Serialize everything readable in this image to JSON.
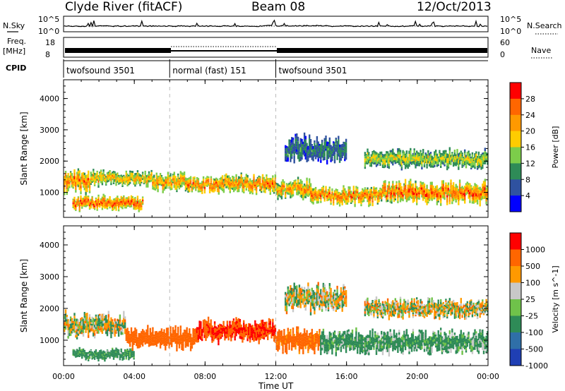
{
  "header": {
    "station": "Clyde River (fitACF)",
    "beam": "Beam 08",
    "date": "12/Oct/2013"
  },
  "strip_labels": {
    "nsky": "N.Sky",
    "nsky_ticks": [
      "10^5",
      "10^0"
    ],
    "nsearch": "N.Search",
    "nsearch_ticks": [
      "10^5",
      "10^0"
    ],
    "freq": "Freq.",
    "freq_unit": "[MHz]",
    "freq_ticks": [
      "18",
      "8"
    ],
    "nave": "Nave",
    "nave_ticks": [
      "60",
      "0"
    ],
    "cpid": "CPID"
  },
  "cpid_segments": [
    {
      "label": "twofsound 3501",
      "start_h": 0,
      "end_h": 6
    },
    {
      "label": "normal (fast) 151",
      "start_h": 6,
      "end_h": 12
    },
    {
      "label": "twofsound 3501",
      "start_h": 12,
      "end_h": 24
    }
  ],
  "colors": {
    "power_scale": [
      "#0000ff",
      "#2f52a0",
      "#2e8b57",
      "#7ccd4a",
      "#ffcc00",
      "#ff9900",
      "#ff6600",
      "#ff0000"
    ],
    "velocity_scale": [
      "#1f3fb4",
      "#2f6fa8",
      "#2e8b57",
      "#6fc24a",
      "#c8c8c8",
      "#ff9900",
      "#ff6600",
      "#ff0000"
    ]
  },
  "chart_data": [
    {
      "type": "heatmap",
      "title": "Power",
      "xlabel": "",
      "ylabel": "Slant Range [km]",
      "x_ticks": [
        "00:00",
        "04:00",
        "08:00",
        "12:00",
        "16:00",
        "20:00",
        "00:00"
      ],
      "y_ticks": [
        1000,
        2000,
        3000,
        4000
      ],
      "xlim_h": [
        0,
        24
      ],
      "ylim_km": [
        200,
        4600
      ],
      "colorbar": {
        "label": "Power [dB]",
        "ticks": [
          "28",
          "24",
          "20",
          "16",
          "12",
          "8",
          "4"
        ],
        "range": [
          0,
          30
        ]
      },
      "bands": [
        {
          "t0": 0.0,
          "t1": 1.5,
          "c_km": 1350,
          "w_km": 600,
          "level": 26
        },
        {
          "t0": 0.5,
          "t1": 4.5,
          "c_km": 650,
          "w_km": 400,
          "level": 29
        },
        {
          "t0": 1.5,
          "t1": 5.0,
          "c_km": 1450,
          "w_km": 400,
          "level": 22
        },
        {
          "t0": 5.0,
          "t1": 7.0,
          "c_km": 1350,
          "w_km": 500,
          "level": 24
        },
        {
          "t0": 7.0,
          "t1": 8.8,
          "c_km": 1250,
          "w_km": 450,
          "level": 27
        },
        {
          "t0": 8.8,
          "t1": 10.5,
          "c_km": 1300,
          "w_km": 500,
          "level": 25
        },
        {
          "t0": 10.5,
          "t1": 12.0,
          "c_km": 1250,
          "w_km": 500,
          "level": 27
        },
        {
          "t0": 12.0,
          "t1": 14.0,
          "c_km": 1100,
          "w_km": 550,
          "level": 24
        },
        {
          "t0": 14.0,
          "t1": 18.0,
          "c_km": 900,
          "w_km": 500,
          "level": 27
        },
        {
          "t0": 18.0,
          "t1": 24.0,
          "c_km": 1000,
          "w_km": 600,
          "level": 28
        },
        {
          "t0": 12.5,
          "t1": 16.0,
          "c_km": 2400,
          "w_km": 700,
          "level": 10
        },
        {
          "t0": 17.0,
          "t1": 24.0,
          "c_km": 2050,
          "w_km": 500,
          "level": 18
        }
      ]
    },
    {
      "type": "heatmap",
      "title": "Velocity",
      "xlabel": "Time UT",
      "ylabel": "Slant Range [km]",
      "x_ticks": [
        "00:00",
        "04:00",
        "08:00",
        "12:00",
        "16:00",
        "20:00",
        "00:00"
      ],
      "y_ticks": [
        1000,
        2000,
        3000,
        4000
      ],
      "xlim_h": [
        0,
        24
      ],
      "ylim_km": [
        200,
        4600
      ],
      "colorbar": {
        "label": "Velocity [m s^-1]",
        "ticks": [
          "1000",
          "500",
          "100",
          "25",
          "-25",
          "-100",
          "-500",
          "-1000"
        ]
      },
      "bands": [
        {
          "t0": 0.0,
          "t1": 3.5,
          "c_km": 1500,
          "w_km": 600,
          "velocity": 0
        },
        {
          "t0": 0.5,
          "t1": 4.0,
          "c_km": 550,
          "w_km": 300,
          "velocity": 150
        },
        {
          "t0": 3.5,
          "t1": 7.5,
          "c_km": 1050,
          "w_km": 550,
          "velocity": -300
        },
        {
          "t0": 7.5,
          "t1": 12.0,
          "c_km": 1300,
          "w_km": 600,
          "velocity": -500
        },
        {
          "t0": 12.0,
          "t1": 14.5,
          "c_km": 1000,
          "w_km": 600,
          "velocity": -200
        },
        {
          "t0": 14.5,
          "t1": 24.0,
          "c_km": 950,
          "w_km": 600,
          "velocity": 120
        },
        {
          "t0": 12.5,
          "t1": 16.0,
          "c_km": 2300,
          "w_km": 700,
          "velocity": 0
        },
        {
          "t0": 17.0,
          "t1": 24.0,
          "c_km": 2000,
          "w_km": 500,
          "velocity": 0
        }
      ]
    }
  ]
}
